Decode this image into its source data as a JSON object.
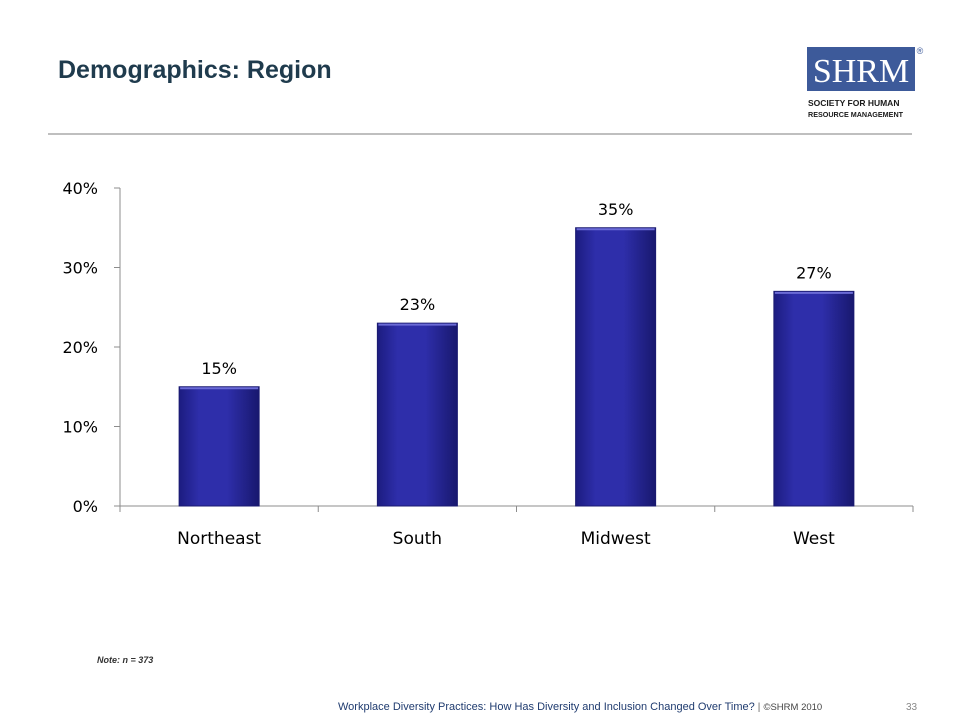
{
  "slide": {
    "title": "Demographics: Region",
    "note": "Note: n = 373",
    "footer_text": "Workplace Diversity Practices: How Has Diversity and Inclusion Changed Over Time?",
    "footer_separator": "|",
    "footer_copyright": "©SHRM 2010",
    "page_number": "33"
  },
  "logo": {
    "letters": "SHRM",
    "line1": "SOCIETY FOR HUMAN",
    "line2": "RESOURCE MANAGEMENT",
    "mark": "®",
    "color": "#3d5a9a"
  },
  "chart_data": {
    "type": "bar",
    "categories": [
      "Northeast",
      "South",
      "Midwest",
      "West"
    ],
    "values": [
      15,
      23,
      35,
      27
    ],
    "data_labels": [
      "15%",
      "23%",
      "35%",
      "27%"
    ],
    "y_ticks": [
      0,
      10,
      20,
      30,
      40
    ],
    "y_tick_labels": [
      "0%",
      "10%",
      "20%",
      "30%",
      "40%"
    ],
    "ylim": [
      0,
      40
    ],
    "title": "",
    "xlabel": "",
    "ylabel": "",
    "grid": false,
    "bar_color": "#2b2ba0",
    "bar_edge_color": "#1a1a70"
  }
}
